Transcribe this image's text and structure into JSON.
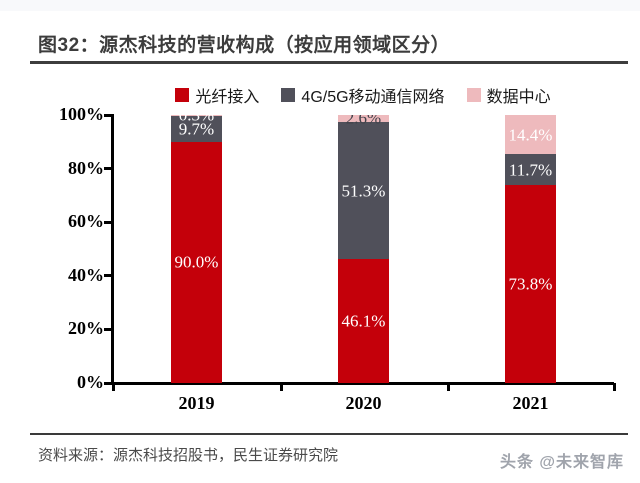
{
  "page": {
    "title": "图32：源杰科技的营收构成（按应用领域区分）",
    "source": "资料来源：源杰科技招股书，民生证券研究院",
    "watermark": "头条 @未来智库"
  },
  "colors": {
    "fiber": "#c4000a",
    "mobile": "#50505a",
    "datacenter": "#eebabd",
    "axis": "#000000",
    "title_text": "#3c3c3c"
  },
  "chart_data": {
    "type": "bar",
    "stacked": true,
    "title": "源杰科技的营收构成（按应用领域区分）",
    "categories": [
      "2019",
      "2020",
      "2021"
    ],
    "series": [
      {
        "name": "光纤接入",
        "color_key": "fiber",
        "values": [
          90.0,
          46.1,
          73.8
        ],
        "labels": [
          "90.0%",
          "46.1%",
          "73.8%"
        ],
        "label_colors": [
          "#ffffff",
          "#ffffff",
          "#ffffff"
        ]
      },
      {
        "name": "4G/5G移动通信网络",
        "color_key": "mobile",
        "values": [
          9.7,
          51.3,
          11.7
        ],
        "labels": [
          "9.7%",
          "51.3%",
          "11.7%"
        ],
        "label_colors": [
          "#ffffff",
          "#ffffff",
          "#ffffff"
        ]
      },
      {
        "name": "数据中心",
        "color_key": "datacenter",
        "values": [
          0.3,
          2.6,
          14.4
        ],
        "labels": [
          "0.3%",
          "2.6%",
          "14.4%"
        ],
        "label_colors": [
          "#ffffff",
          "#42424a",
          "#ffffff"
        ]
      }
    ],
    "value_suffix": "%",
    "ylim": [
      0,
      100
    ],
    "yticks": [
      "0%",
      "20%",
      "40%",
      "60%",
      "80%",
      "100%"
    ],
    "grid": false,
    "legend_position": "top"
  }
}
